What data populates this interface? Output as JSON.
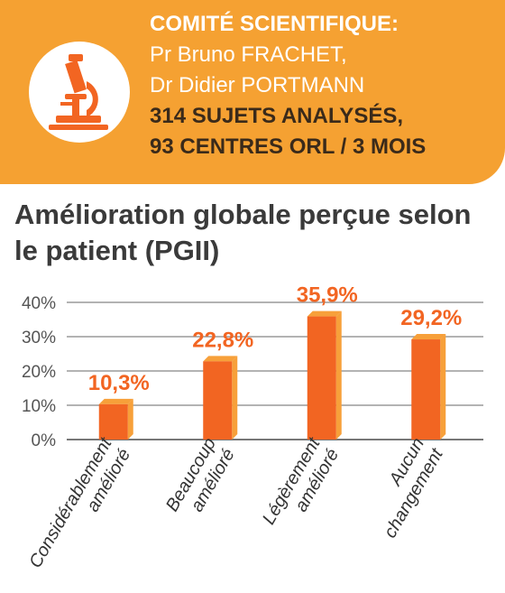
{
  "header": {
    "committee_label": "COMITÉ SCIENTIFIQUE:",
    "person_1": "Pr Bruno FRACHET,",
    "person_2": "Dr Didier PORTMANN",
    "stat_1": "314 SUJETS ANALYSÉS,",
    "stat_2": "93 CENTRES ORL / 3 MOIS",
    "icon": "microscope-icon",
    "banner_color": "#f5a132"
  },
  "chart_data": {
    "type": "bar",
    "title": "Amélioration globale perçue selon le patient (PGII)",
    "categories": [
      [
        "Considérablement",
        "amélioré"
      ],
      [
        "Beaucoup",
        "amélioré"
      ],
      [
        "Légèrement",
        "amélioré"
      ],
      [
        "Aucun",
        "changement"
      ]
    ],
    "values": [
      10.3,
      22.8,
      35.9,
      29.2
    ],
    "value_labels": [
      "10,3%",
      "22,8%",
      "35,9%",
      "29,2%"
    ],
    "yticks": [
      "0%",
      "10%",
      "20%",
      "30%",
      "40%"
    ],
    "ylim": [
      0,
      40
    ],
    "grid": true,
    "colors": {
      "bar_front": "#f26522",
      "bar_side": "#f7a03a",
      "label": "#f26522"
    }
  }
}
